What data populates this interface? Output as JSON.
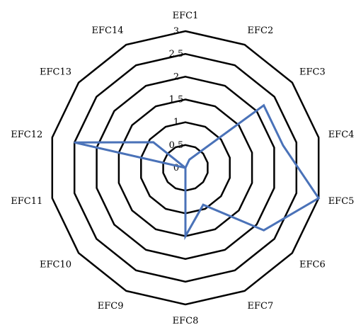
{
  "chart_data": {
    "type": "radar",
    "categories": [
      "EFC1",
      "EFC2",
      "EFC3",
      "EFC4",
      "EFC5",
      "EFC6",
      "EFC7",
      "EFC8",
      "EFC9",
      "EFC10",
      "EFC11",
      "EFC12",
      "EFC13",
      "EFC14"
    ],
    "series": [
      {
        "values": [
          0.0,
          0.2,
          2.2,
          2.2,
          3.0,
          2.2,
          0.9,
          1.5,
          0.0,
          0.0,
          0.0,
          2.5,
          0.9,
          0.0
        ]
      }
    ],
    "ticks": [
      "0",
      "0.5",
      "1",
      "1.5",
      "2",
      "2.5",
      "3"
    ],
    "rlim": [
      0,
      3
    ],
    "grid": true,
    "colors": {
      "series": "#4a72b8",
      "grid": "#000000"
    }
  }
}
